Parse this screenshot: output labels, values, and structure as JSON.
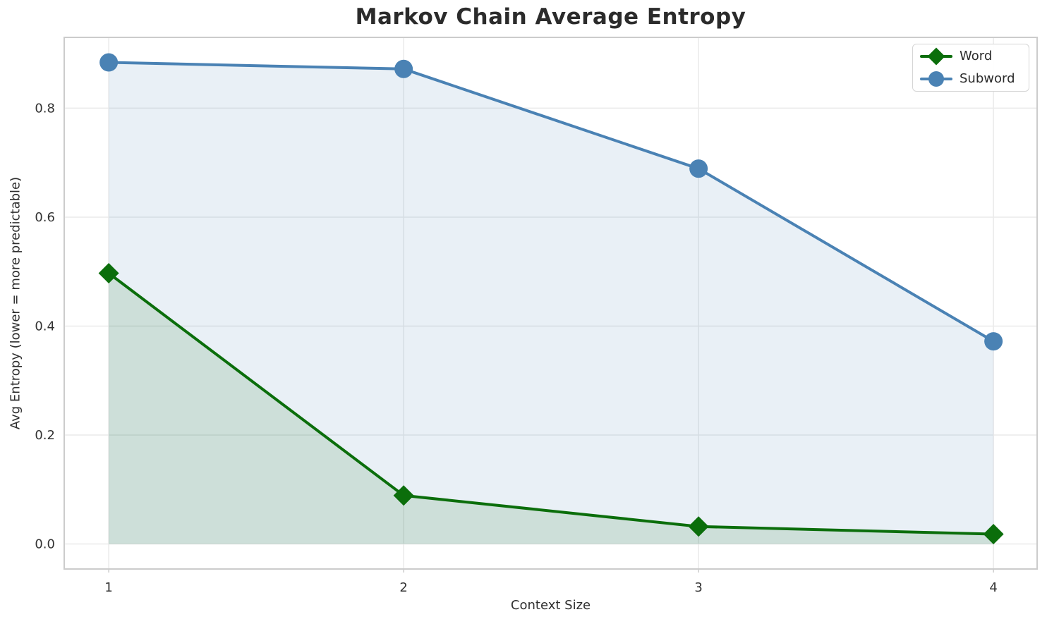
{
  "chart_data": {
    "type": "line",
    "title": "Markov Chain Average Entropy",
    "xlabel": "Context Size",
    "ylabel": "Avg Entropy (lower = more predictable)",
    "x": [
      1,
      2,
      3,
      4
    ],
    "series": [
      {
        "name": "Subword",
        "values": [
          0.884,
          0.872,
          0.689,
          0.372
        ],
        "color": "#4a82b4",
        "marker": "circle",
        "fill_to_zero": true,
        "fill_alpha": 0.12
      },
      {
        "name": "Word",
        "values": [
          0.497,
          0.089,
          0.032,
          0.018
        ],
        "color": "#0b6e0b",
        "marker": "diamond",
        "fill_to_zero": true,
        "fill_alpha": 0.12
      }
    ],
    "legend": [
      "Word",
      "Subword"
    ],
    "legend_position": "upper right",
    "xticks": [
      "1",
      "2",
      "3",
      "4"
    ],
    "yticks": [
      0.0,
      0.2,
      0.4,
      0.6,
      0.8
    ],
    "xlim": [
      0.849,
      4.148
    ],
    "ylim": [
      -0.046,
      0.93
    ],
    "grid": true
  },
  "colors": {
    "grid": "#eaeaea",
    "spine": "#cccccc",
    "tick_text": "#333333",
    "title_text": "#2b2b2b"
  }
}
